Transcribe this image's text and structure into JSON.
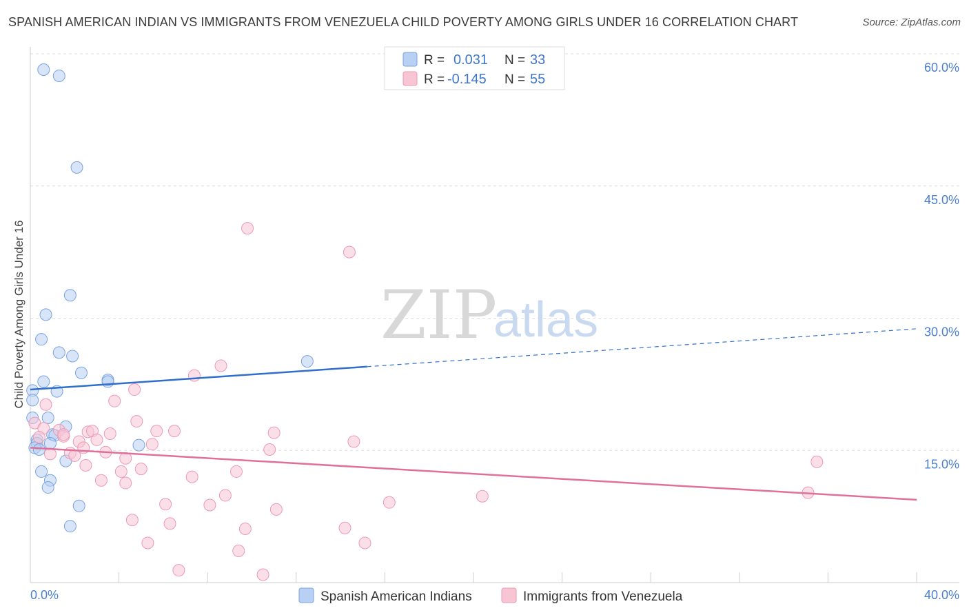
{
  "header": {
    "title": "SPANISH AMERICAN INDIAN VS IMMIGRANTS FROM VENEZUELA CHILD POVERTY AMONG GIRLS UNDER 16 CORRELATION CHART",
    "source": "Source: ZipAtlas.com"
  },
  "watermark": {
    "part1": "ZIP",
    "part2": "atlas"
  },
  "legend_top": {
    "series1": {
      "r_label": "R =",
      "r_value": "0.031",
      "n_label": "N =",
      "n_value": "33"
    },
    "series2": {
      "r_label": "R =",
      "r_value": "-0.145",
      "n_label": "N =",
      "n_value": "55"
    }
  },
  "colors": {
    "series1_fill": "#b8d0f3",
    "series1_stroke": "#7aa3e0",
    "series1_line": "#2f6fca",
    "series2_fill": "#f8c5d5",
    "series2_stroke": "#ec9ab5",
    "series2_line": "#e0709a",
    "grid": "#dddddd",
    "axis_label": "#4a7fd0"
  },
  "chart_data": {
    "type": "scatter",
    "title": "SPANISH AMERICAN INDIAN VS IMMIGRANTS FROM VENEZUELA CHILD POVERTY AMONG GIRLS UNDER 16 CORRELATION CHART",
    "xlabel": "",
    "ylabel": "Child Poverty Among Girls Under 16",
    "xlim": [
      0,
      40
    ],
    "ylim": [
      0,
      60
    ],
    "x_tick_labels": [
      "0.0%",
      "40.0%"
    ],
    "y_ticks": [
      15,
      30,
      45,
      60
    ],
    "y_tick_labels": [
      "15.0%",
      "30.0%",
      "45.0%",
      "60.0%"
    ],
    "legend": [
      "Spanish American Indians",
      "Immigrants from Venezuela"
    ],
    "series": [
      {
        "name": "Spanish American Indians",
        "r": 0.031,
        "n": 33,
        "trend": {
          "x0": 0,
          "y0": 21.9,
          "x1": 15.2,
          "y1": 24.5,
          "dash_to_x": 40,
          "dash_to_y": 28.8
        },
        "points": [
          [
            0.6,
            58.2
          ],
          [
            1.3,
            57.5
          ],
          [
            2.1,
            47.1
          ],
          [
            1.8,
            32.6
          ],
          [
            0.7,
            30.4
          ],
          [
            0.5,
            27.6
          ],
          [
            1.3,
            26.1
          ],
          [
            1.9,
            25.7
          ],
          [
            12.5,
            25.1
          ],
          [
            2.3,
            23.8
          ],
          [
            3.5,
            23.0
          ],
          [
            3.5,
            22.8
          ],
          [
            0.6,
            22.8
          ],
          [
            0.1,
            21.8
          ],
          [
            1.2,
            21.7
          ],
          [
            0.1,
            20.7
          ],
          [
            0.1,
            18.7
          ],
          [
            0.8,
            18.7
          ],
          [
            1.6,
            17.7
          ],
          [
            1.0,
            16.8
          ],
          [
            1.1,
            16.7
          ],
          [
            0.3,
            16.2
          ],
          [
            0.3,
            15.8
          ],
          [
            0.9,
            15.8
          ],
          [
            0.2,
            15.3
          ],
          [
            4.9,
            15.6
          ],
          [
            1.6,
            13.8
          ],
          [
            0.9,
            11.6
          ],
          [
            0.5,
            12.6
          ],
          [
            0.8,
            10.8
          ],
          [
            2.2,
            8.7
          ],
          [
            1.8,
            6.4
          ],
          [
            0.4,
            15.1
          ]
        ]
      },
      {
        "name": "Immigrants from Venezuela",
        "r": -0.145,
        "n": 55,
        "trend": {
          "x0": 0,
          "y0": 15.3,
          "x1": 40,
          "y1": 9.4
        },
        "points": [
          [
            9.8,
            40.2
          ],
          [
            14.4,
            37.5
          ],
          [
            8.6,
            24.6
          ],
          [
            7.4,
            23.5
          ],
          [
            4.7,
            21.9
          ],
          [
            3.8,
            20.6
          ],
          [
            0.7,
            20.2
          ],
          [
            0.2,
            18.1
          ],
          [
            4.8,
            18.3
          ],
          [
            0.6,
            17.5
          ],
          [
            1.3,
            17.3
          ],
          [
            2.6,
            17.1
          ],
          [
            2.8,
            17.2
          ],
          [
            5.7,
            17.2
          ],
          [
            6.5,
            17.2
          ],
          [
            11.0,
            17.0
          ],
          [
            3.6,
            16.9
          ],
          [
            1.5,
            16.6
          ],
          [
            1.5,
            16.8
          ],
          [
            0.4,
            16.5
          ],
          [
            2.2,
            16.0
          ],
          [
            3.0,
            16.2
          ],
          [
            2.4,
            15.3
          ],
          [
            5.5,
            15.7
          ],
          [
            14.6,
            16.0
          ],
          [
            10.8,
            15.1
          ],
          [
            3.4,
            14.8
          ],
          [
            1.8,
            14.7
          ],
          [
            0.9,
            14.6
          ],
          [
            2.0,
            14.4
          ],
          [
            4.3,
            14.1
          ],
          [
            2.5,
            13.3
          ],
          [
            5.0,
            12.9
          ],
          [
            4.1,
            12.6
          ],
          [
            9.3,
            12.6
          ],
          [
            7.3,
            12.0
          ],
          [
            3.2,
            11.6
          ],
          [
            4.3,
            11.3
          ],
          [
            8.8,
            9.9
          ],
          [
            20.4,
            9.8
          ],
          [
            35.5,
            13.7
          ],
          [
            35.1,
            10.2
          ],
          [
            6.1,
            8.9
          ],
          [
            8.1,
            8.8
          ],
          [
            16.2,
            9.1
          ],
          [
            11.1,
            8.3
          ],
          [
            4.6,
            7.1
          ],
          [
            6.3,
            6.7
          ],
          [
            9.7,
            6.1
          ],
          [
            14.2,
            6.2
          ],
          [
            5.3,
            4.5
          ],
          [
            15.1,
            4.5
          ],
          [
            9.4,
            3.6
          ],
          [
            6.7,
            1.4
          ],
          [
            10.5,
            0.9
          ]
        ]
      }
    ]
  }
}
